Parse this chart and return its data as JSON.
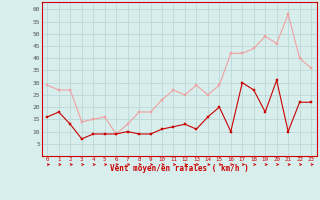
{
  "hours": [
    0,
    1,
    2,
    3,
    4,
    5,
    6,
    7,
    8,
    9,
    10,
    11,
    12,
    13,
    14,
    15,
    16,
    17,
    18,
    19,
    20,
    21,
    22,
    23
  ],
  "wind_avg": [
    16,
    18,
    13,
    7,
    9,
    9,
    9,
    10,
    9,
    9,
    11,
    12,
    13,
    11,
    16,
    20,
    10,
    30,
    27,
    18,
    31,
    10,
    22,
    22
  ],
  "wind_gust": [
    29,
    27,
    27,
    14,
    15,
    16,
    9,
    13,
    18,
    18,
    23,
    27,
    25,
    29,
    25,
    29,
    42,
    42,
    44,
    49,
    46,
    58,
    40,
    36
  ],
  "bg_color": "#d7eeed",
  "grid_color": "#b8d4d4",
  "avg_color": "#cc0000",
  "gust_color": "#f0a0a0",
  "xlabel": "Vent moyen/en rafales ( km/h )",
  "xlabel_color": "#cc0000",
  "yticks": [
    5,
    10,
    15,
    20,
    25,
    30,
    35,
    40,
    45,
    50,
    55,
    60
  ],
  "ylim": [
    0,
    63
  ],
  "xlim": [
    -0.5,
    23.5
  ]
}
